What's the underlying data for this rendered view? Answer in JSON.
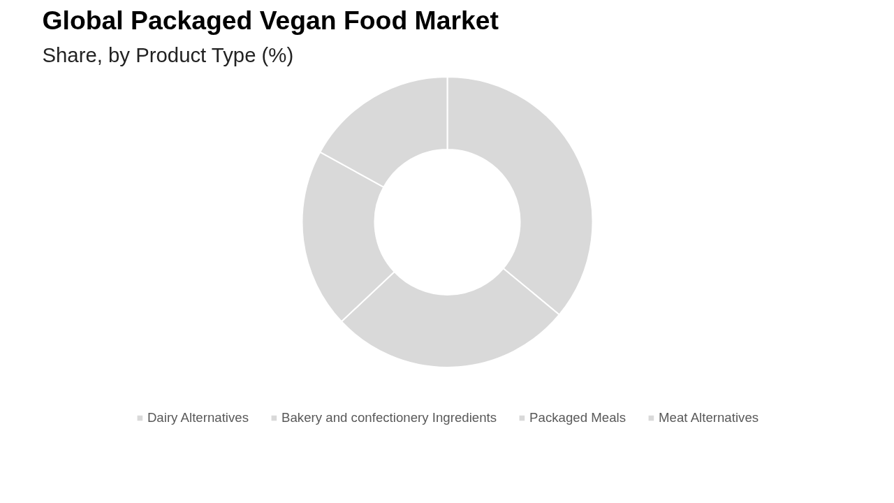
{
  "chart_data": {
    "type": "donut",
    "title": "Global Packaged Vegan Food Market",
    "subtitle": "Share, by Product Type (%)",
    "categories": [
      "Dairy Alternatives",
      "Bakery and confectionery Ingredients",
      "Packaged Meals",
      "Meat Alternatives"
    ],
    "values": [
      36,
      27,
      20,
      17
    ],
    "colors": [
      "#d9d9d9",
      "#d9d9d9",
      "#d9d9d9",
      "#d9d9d9"
    ],
    "legend": "bottom"
  }
}
